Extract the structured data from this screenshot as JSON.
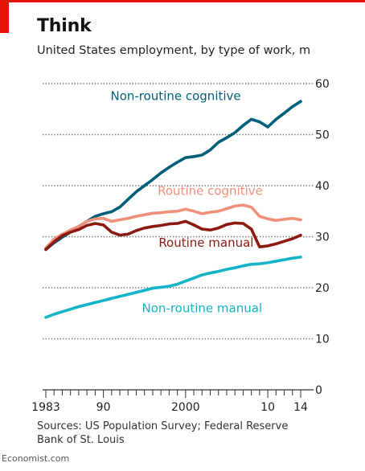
{
  "header": {
    "title": "Think",
    "subtitle": "United States employment, by type of work, m"
  },
  "footer": {
    "source": "Sources: US Population Survey; Federal Reserve Bank of St. Louis",
    "brand": "Economist.com"
  },
  "colors": {
    "accent": "#e3120b",
    "non_routine_cognitive": "#005f7a",
    "routine_cognitive": "#f0907a",
    "routine_manual": "#8b1a10",
    "non_routine_manual": "#12b4c8"
  },
  "chart_data": {
    "type": "line",
    "title": "Think",
    "subtitle": "United States employment, by type of work, m",
    "ylim": [
      0,
      60
    ],
    "xlim": [
      1983,
      2014
    ],
    "yticks": [
      0,
      10,
      20,
      30,
      40,
      50,
      60
    ],
    "ytick_labels": [
      "0",
      "10",
      "20",
      "30",
      "40",
      "50",
      "60"
    ],
    "xtick_labels": [
      {
        "year": 1983,
        "label": "1983"
      },
      {
        "year": 1990,
        "label": "90"
      },
      {
        "year": 2000,
        "label": "2000"
      },
      {
        "year": 2010,
        "label": "10"
      },
      {
        "year": 2014,
        "label": "14"
      }
    ],
    "grid": true,
    "series": [
      {
        "name": "Non-routine cognitive",
        "color": "#005f7a",
        "x": [
          1983,
          1984,
          1985,
          1986,
          1987,
          1988,
          1989,
          1990,
          1991,
          1992,
          1993,
          1994,
          1995,
          1996,
          1997,
          1998,
          1999,
          2000,
          2001,
          2002,
          2003,
          2004,
          2005,
          2006,
          2007,
          2008,
          2009,
          2010,
          2011,
          2012,
          2013,
          2014
        ],
        "values": [
          27.5,
          28.8,
          29.9,
          30.9,
          32.0,
          33.0,
          34.0,
          34.5,
          34.9,
          35.8,
          37.3,
          38.8,
          40.0,
          41.2,
          42.5,
          43.6,
          44.6,
          45.5,
          45.7,
          46.0,
          47.0,
          48.5,
          49.4,
          50.4,
          51.8,
          53.0,
          52.5,
          51.5,
          53.0,
          54.2,
          55.5,
          56.5
        ]
      },
      {
        "name": "Routine cognitive",
        "color": "#f0907a",
        "x": [
          1983,
          1984,
          1985,
          1986,
          1987,
          1988,
          1989,
          1990,
          1991,
          1992,
          1993,
          1994,
          1995,
          1996,
          1997,
          1998,
          1999,
          2000,
          2001,
          2002,
          2003,
          2004,
          2005,
          2006,
          2007,
          2008,
          2009,
          2010,
          2011,
          2012,
          2013,
          2014
        ],
        "values": [
          27.8,
          29.5,
          30.5,
          31.3,
          32.0,
          33.0,
          33.5,
          33.6,
          33.0,
          33.3,
          33.6,
          34.0,
          34.3,
          34.6,
          34.7,
          34.9,
          35.0,
          35.4,
          35.0,
          34.5,
          34.8,
          35.0,
          35.5,
          36.0,
          36.2,
          35.8,
          34.0,
          33.5,
          33.2,
          33.4,
          33.6,
          33.3
        ]
      },
      {
        "name": "Routine manual",
        "color": "#8b1a10",
        "x": [
          1983,
          1984,
          1985,
          1986,
          1987,
          1988,
          1989,
          1990,
          1991,
          1992,
          1993,
          1994,
          1995,
          1996,
          1997,
          1998,
          1999,
          2000,
          2001,
          2002,
          2003,
          2004,
          2005,
          2006,
          2007,
          2008,
          2009,
          2010,
          2011,
          2012,
          2013,
          2014
        ],
        "values": [
          27.5,
          29.0,
          30.2,
          30.9,
          31.4,
          32.2,
          32.6,
          32.3,
          30.9,
          30.3,
          30.5,
          31.2,
          31.7,
          32.0,
          32.2,
          32.5,
          32.6,
          33.0,
          32.3,
          31.5,
          31.3,
          31.7,
          32.4,
          32.7,
          32.6,
          31.5,
          28.0,
          28.2,
          28.6,
          29.1,
          29.6,
          30.3
        ]
      },
      {
        "name": "Non-routine manual",
        "color": "#12b4c8",
        "x": [
          1983,
          1984,
          1985,
          1986,
          1987,
          1988,
          1989,
          1990,
          1991,
          1992,
          1993,
          1994,
          1995,
          1996,
          1997,
          1998,
          1999,
          2000,
          2001,
          2002,
          2003,
          2004,
          2005,
          2006,
          2007,
          2008,
          2009,
          2010,
          2011,
          2012,
          2013,
          2014
        ],
        "values": [
          14.2,
          14.8,
          15.3,
          15.8,
          16.3,
          16.7,
          17.1,
          17.5,
          17.9,
          18.3,
          18.7,
          19.1,
          19.5,
          19.9,
          20.1,
          20.3,
          20.7,
          21.3,
          21.9,
          22.5,
          22.9,
          23.2,
          23.6,
          23.9,
          24.3,
          24.6,
          24.7,
          24.9,
          25.2,
          25.5,
          25.8,
          26.0
        ]
      }
    ]
  }
}
